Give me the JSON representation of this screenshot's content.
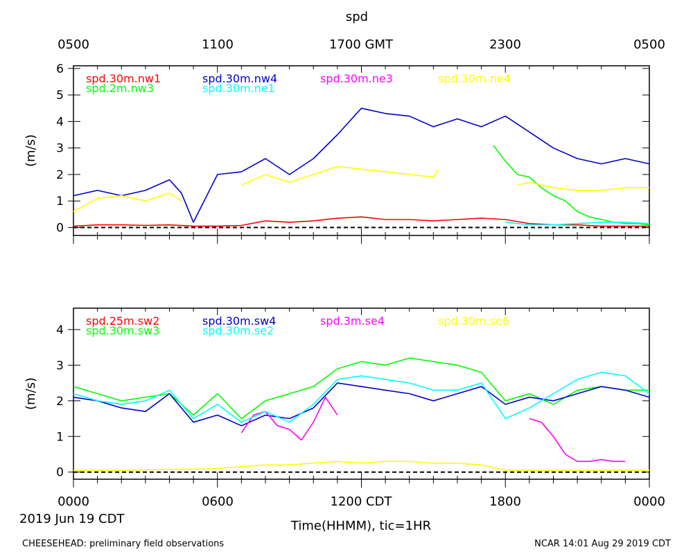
{
  "figure": {
    "title": "spd",
    "xlabel": "Time(HHMM), tic=1HR",
    "date_label": "2019 Jun 19 CDT",
    "footer_left": "CHEESEHEAD: preliminary field observations",
    "footer_right": "NCAR 14:01 Aug 29 2019 CDT",
    "top_ticks": [
      "0500",
      "1100",
      "1700 GMT",
      "2300",
      "0500"
    ],
    "bottom_ticks": [
      "0000",
      "0600",
      "1200 CDT",
      "1800",
      "0000"
    ],
    "colors": {
      "red": "#ff0000",
      "green": "#00ff00",
      "blue": "#0000cc",
      "cyan": "#00ffff",
      "magenta": "#ff00ff",
      "yellow": "#ffff00"
    }
  },
  "chart_data": [
    {
      "type": "line",
      "ylabel": "(m/s)",
      "xlim": [
        0,
        24
      ],
      "ylim": [
        -0.3,
        6.1
      ],
      "yticks": [
        "0",
        "1",
        "2",
        "3",
        "4",
        "5",
        "6"
      ],
      "series": [
        {
          "name": "spd.30m.nw1",
          "color": "#ff0000",
          "x": [
            0,
            1,
            2,
            3,
            4,
            5,
            6,
            7,
            8,
            9,
            10,
            11,
            12,
            13,
            14,
            15,
            16,
            17,
            18,
            19,
            20,
            21,
            22,
            23,
            24
          ],
          "y": [
            0.05,
            0.1,
            0.1,
            0.08,
            0.1,
            0.05,
            0.05,
            0.08,
            0.25,
            0.2,
            0.25,
            0.35,
            0.4,
            0.3,
            0.3,
            0.25,
            0.3,
            0.35,
            0.3,
            0.15,
            0.1,
            0.1,
            0.05,
            0.05,
            0.05
          ]
        },
        {
          "name": "spd.2m.nw3",
          "color": "#00ff00",
          "x": [
            17.5,
            18,
            18.5,
            19,
            19.5,
            20,
            20.5,
            21,
            21.5,
            22,
            22.5,
            23,
            23.5,
            24
          ],
          "y": [
            3.1,
            2.5,
            2.0,
            1.9,
            1.5,
            1.2,
            1.0,
            0.6,
            0.4,
            0.3,
            0.2,
            0.15,
            0.15,
            0.1
          ]
        },
        {
          "name": "spd.30m.nw4",
          "color": "#0000cc",
          "x": [
            0,
            1,
            2,
            3,
            4,
            4.5,
            5,
            6,
            7,
            8,
            9,
            10,
            11,
            12,
            13,
            14,
            15,
            16,
            17,
            18,
            19,
            20,
            21,
            22,
            23,
            24
          ],
          "y": [
            1.2,
            1.4,
            1.2,
            1.4,
            1.8,
            1.3,
            0.2,
            2.0,
            2.1,
            2.6,
            2.0,
            2.6,
            3.5,
            4.5,
            4.3,
            4.2,
            3.8,
            4.1,
            3.8,
            4.2,
            3.6,
            3.0,
            2.6,
            2.4,
            2.6,
            2.4
          ]
        },
        {
          "name": "spd.30m.ne1",
          "color": "#00ffff",
          "x": [
            18,
            19,
            20,
            21,
            22,
            23,
            24
          ],
          "y": [
            0.2,
            0.1,
            0.1,
            0.15,
            0.2,
            0.2,
            0.15
          ]
        },
        {
          "name": "spd.30m.ne3",
          "color": "#ff00ff",
          "x": [],
          "y": []
        },
        {
          "name": "spd.30m.ne4",
          "color": "#ffff00",
          "x": [
            0,
            1,
            2,
            3,
            4,
            4.5,
            5,
            5.5,
            6,
            7,
            8,
            9,
            10,
            11,
            12,
            13,
            14,
            15,
            15.2,
            17,
            17.5,
            18,
            18.5,
            19,
            20,
            21,
            22,
            23,
            24
          ],
          "y": [
            0.6,
            1.1,
            1.2,
            1.0,
            1.3,
            1.0,
            null,
            null,
            null,
            1.6,
            2.0,
            1.7,
            2.0,
            2.3,
            2.2,
            2.1,
            2.0,
            1.9,
            2.2,
            null,
            null,
            null,
            1.6,
            1.7,
            1.5,
            1.4,
            1.4,
            1.5,
            1.5
          ]
        }
      ]
    },
    {
      "type": "line",
      "ylabel": "(m/s)",
      "xlim": [
        0,
        24
      ],
      "ylim": [
        -0.2,
        4.6
      ],
      "yticks": [
        "0",
        "1",
        "2",
        "3",
        "4"
      ],
      "series": [
        {
          "name": "spd.25m.sw2",
          "color": "#ff0000",
          "x": [],
          "y": []
        },
        {
          "name": "spd.30m.sw3",
          "color": "#00ff00",
          "x": [
            0,
            1,
            2,
            3,
            4,
            5,
            6,
            7,
            8,
            9,
            10,
            11,
            12,
            13,
            14,
            15,
            16,
            17,
            18,
            19,
            20,
            21,
            22,
            23,
            24
          ],
          "y": [
            2.4,
            2.2,
            2.0,
            2.1,
            2.2,
            1.6,
            2.2,
            1.5,
            2.0,
            2.2,
            2.4,
            2.9,
            3.1,
            3.0,
            3.2,
            3.1,
            3.0,
            2.8,
            2.0,
            2.2,
            1.9,
            2.3,
            2.4,
            2.3,
            2.3
          ]
        },
        {
          "name": "spd.30m.sw4",
          "color": "#0000cc",
          "x": [
            0,
            1,
            2,
            3,
            4,
            5,
            6,
            7,
            8,
            9,
            10,
            11,
            12,
            13,
            14,
            15,
            16,
            17,
            18,
            19,
            20,
            21,
            22,
            23,
            24
          ],
          "y": [
            2.1,
            2.0,
            1.8,
            1.7,
            2.2,
            1.4,
            1.6,
            1.3,
            1.6,
            1.5,
            1.8,
            2.5,
            2.4,
            2.3,
            2.2,
            2.0,
            2.2,
            2.4,
            1.9,
            2.1,
            2.0,
            2.2,
            2.4,
            2.3,
            2.1
          ]
        },
        {
          "name": "spd.3m.se4",
          "color": "#ff00ff",
          "x": [
            7,
            7.5,
            8,
            8.5,
            9,
            9.5,
            10,
            10.5,
            11,
            null,
            19,
            19.5,
            20,
            20.5,
            21,
            21.5,
            22,
            22.5,
            23
          ],
          "y": [
            1.1,
            1.6,
            1.7,
            1.3,
            1.2,
            0.9,
            1.4,
            2.1,
            1.6,
            null,
            1.5,
            1.4,
            1.0,
            0.5,
            0.3,
            0.3,
            0.35,
            0.3,
            0.3
          ]
        },
        {
          "name": "spd.30m.se2",
          "color": "#00ffff",
          "x": [
            0,
            1,
            2,
            3,
            4,
            5,
            6,
            7,
            8,
            9,
            10,
            11,
            12,
            13,
            14,
            15,
            16,
            17,
            18,
            19,
            20,
            21,
            22,
            23,
            24
          ],
          "y": [
            2.2,
            2.0,
            1.9,
            2.0,
            2.3,
            1.5,
            1.9,
            1.4,
            1.7,
            1.4,
            1.9,
            2.6,
            2.7,
            2.6,
            2.5,
            2.3,
            2.3,
            2.5,
            1.5,
            1.8,
            2.2,
            2.6,
            2.8,
            2.7,
            2.2
          ]
        },
        {
          "name": "spd.30m.se6",
          "color": "#ffff00",
          "x": [
            0,
            1,
            2,
            3,
            4,
            5,
            6,
            7,
            8,
            9,
            10,
            11,
            12,
            13,
            14,
            15,
            16,
            17,
            18,
            19,
            20,
            21,
            22,
            23,
            24
          ],
          "y": [
            0.05,
            0.05,
            0.05,
            0.06,
            0.08,
            0.08,
            0.1,
            0.15,
            0.2,
            0.2,
            0.25,
            0.3,
            0.25,
            0.3,
            0.3,
            0.25,
            0.25,
            0.2,
            0.05,
            0.05,
            0.05,
            0.05,
            0.05,
            0.05,
            0.05
          ]
        }
      ]
    }
  ]
}
